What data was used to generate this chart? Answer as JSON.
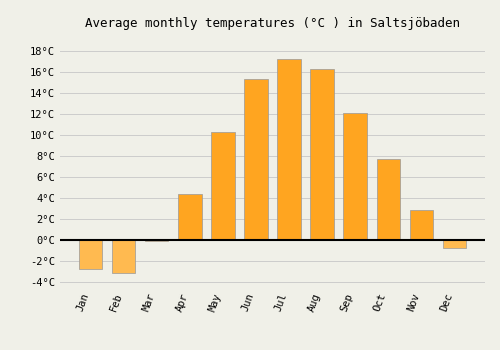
{
  "title": "Average monthly temperatures (°C ) in Saltsjöbaden",
  "months": [
    "Jan",
    "Feb",
    "Mar",
    "Apr",
    "May",
    "Jun",
    "Jul",
    "Aug",
    "Sep",
    "Oct",
    "Nov",
    "Dec"
  ],
  "values": [
    -2.8,
    -3.2,
    -0.1,
    4.4,
    10.3,
    15.3,
    17.2,
    16.3,
    12.1,
    7.7,
    2.8,
    -0.8
  ],
  "bar_color_positive": "#FFA520",
  "bar_color_negative": "#FFBA50",
  "bar_edge_color": "#999999",
  "ylim": [
    -4.5,
    19.5
  ],
  "yticks": [
    -4,
    -2,
    0,
    2,
    4,
    6,
    8,
    10,
    12,
    14,
    16,
    18
  ],
  "ytick_labels": [
    "-4°C",
    "-2°C",
    "0°C",
    "2°C",
    "4°C",
    "6°C",
    "8°C",
    "10°C",
    "12°C",
    "14°C",
    "16°C",
    "18°C"
  ],
  "background_color": "#f0f0e8",
  "grid_color": "#cccccc",
  "zero_line_color": "#000000",
  "title_fontsize": 9,
  "tick_fontsize": 7.5
}
